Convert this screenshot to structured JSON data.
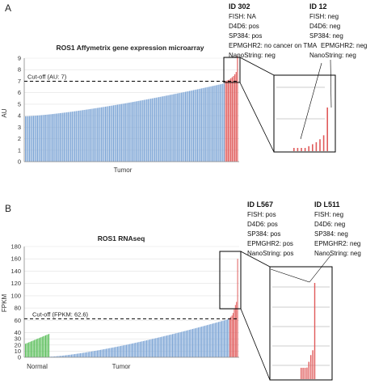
{
  "chart_data": [
    {
      "panel": "A",
      "type": "bar",
      "title": "ROS1 Affymetrix gene expression microarray",
      "ylabel": "AU",
      "xlabel": "Tumor",
      "ylim": [
        0,
        9
      ],
      "yticks": [
        "0",
        "1",
        "2",
        "3",
        "4",
        "5",
        "6",
        "7",
        "8",
        "9"
      ],
      "grid": true,
      "cutoff": {
        "label": "Cut-off (AU: 7)",
        "value": 7
      },
      "colors": {
        "tumor": "#7ea6d6",
        "positive": "#e05a5a",
        "normal": "#5cbf5c"
      },
      "series": [
        {
          "group": "Tumor",
          "count": 150,
          "start": 3.95,
          "end": 6.8
        },
        {
          "group": "Positive",
          "values": [
            7.0,
            7.05,
            7.1,
            7.15,
            7.25,
            7.35,
            7.45,
            7.6,
            7.8,
            9.2
          ]
        }
      ],
      "annotations": [
        {
          "id": "ID 302",
          "lines": [
            "FISH: NA",
            "D4D6: pos",
            "SP384: pos",
            "EPMGHR2: no cancer on TMA",
            "NanoString: neg"
          ]
        },
        {
          "id": "ID 12",
          "lines": [
            "FISH: neg",
            "D4D6: neg",
            "SP384: neg",
            "EPMGHR2: neg",
            "NanoString: neg"
          ]
        }
      ]
    },
    {
      "panel": "B",
      "type": "bar",
      "title": "ROS1 RNAseq",
      "ylabel": "FPKM",
      "xlabel": "Tumor",
      "ylim": [
        0,
        180
      ],
      "yticks": [
        "0",
        "10",
        "20",
        "30",
        "40",
        "60",
        "80",
        "100",
        "120",
        "140",
        "160",
        "180"
      ],
      "grid": true,
      "cutoff": {
        "label": "Cut-off (FPKM: 62.6)",
        "value": 62.6
      },
      "colors": {
        "tumor": "#7ea6d6",
        "positive": "#e05a5a",
        "normal": "#5cbf5c"
      },
      "series": [
        {
          "group": "Normal",
          "count": 22,
          "start": 22,
          "end": 38
        },
        {
          "group": "Tumor",
          "count": 160,
          "start": 1,
          "end": 62
        },
        {
          "group": "Positive",
          "values": [
            64,
            66,
            68,
            72,
            78,
            85,
            90,
            160
          ]
        }
      ],
      "annotations": [
        {
          "id": "ID L567",
          "lines": [
            "FISH: pos",
            "D4D6: pos",
            "SP384: pos",
            "EPMGHR2: pos",
            "NanoString: pos"
          ]
        },
        {
          "id": "ID L511",
          "lines": [
            "FISH: neg",
            "D4D6: neg",
            "SP384: neg",
            "EPMGHR2: neg",
            "NanoString: neg"
          ]
        }
      ]
    }
  ]
}
